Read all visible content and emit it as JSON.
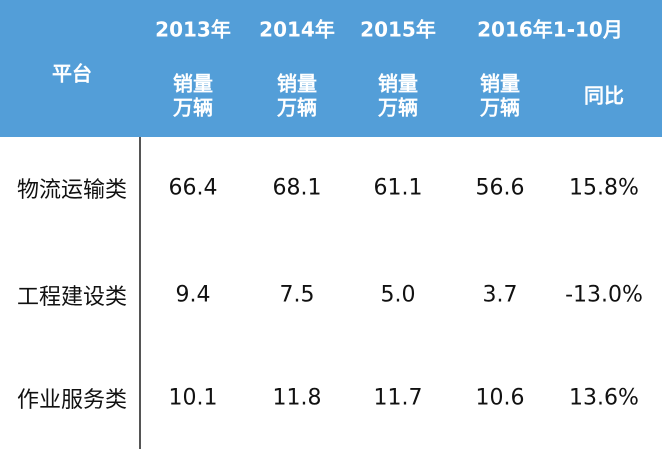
{
  "table": {
    "header": {
      "platform": "平台",
      "periods": [
        "2013年",
        "2014年",
        "2015年",
        "2016年1-10月"
      ],
      "units": [
        [
          "销量",
          "万辆"
        ],
        [
          "销量",
          "万辆"
        ],
        [
          "销量",
          "万辆"
        ],
        [
          "销量",
          "万辆"
        ]
      ],
      "yoy": "同比"
    },
    "rows": [
      [
        "物流运输类",
        "66.4",
        "68.1",
        "61.1",
        "56.6",
        "15.8%"
      ],
      [
        "工程建设类",
        "9.4",
        "7.5",
        "5.0",
        "3.7",
        "-13.0%"
      ],
      [
        "作业服务类",
        "10.1",
        "11.8",
        "11.7",
        "10.6",
        "13.6%"
      ]
    ]
  }
}
